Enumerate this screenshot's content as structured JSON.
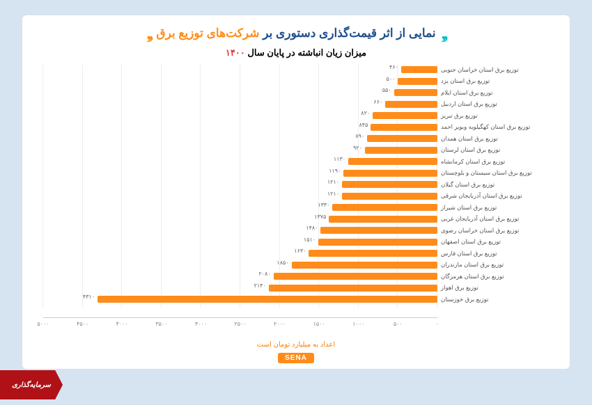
{
  "header": {
    "pre": "نمایی از اثر قیمت‌گذاری دستوری بر ",
    "highlight": "شرکت‌های توزیع برق"
  },
  "subtitle_text": "میزان زیان انباشته در پایان سال ",
  "subtitle_year": "۱۴۰۰",
  "footnote": "اعداد به میلیارد تومان است",
  "logo": "SENA",
  "badge": "سرمایه‌گذاری",
  "chart": {
    "type": "bar-horizontal",
    "bar_color": "#ff8c1a",
    "grid_color": "#eeeeee",
    "label_color": "#555555",
    "value_color": "#666666",
    "xmax": 5000,
    "xticks": [
      "۰",
      "۵۰۰",
      "۱۰۰۰",
      "۱۵۰۰",
      "۲۰۰۰",
      "۲۵۰۰",
      "۳۰۰۰",
      "۳۵۰۰",
      "۴۰۰۰",
      "۴۵۰۰",
      "۵۰۰۰"
    ],
    "xtick_vals": [
      0,
      500,
      1000,
      1500,
      2000,
      2500,
      3000,
      3500,
      4000,
      4500,
      5000
    ],
    "items": [
      {
        "label": "توزیع برق استان خراسان جنوبی",
        "val": 460,
        "disp": "۴۶۰"
      },
      {
        "label": "توزیع برق استان یزد",
        "val": 500,
        "disp": "۵۰۰"
      },
      {
        "label": "توزیع برق استان ایلام",
        "val": 550,
        "disp": "۵۵۰"
      },
      {
        "label": "توزیع برق استان اردبیل",
        "val": 660,
        "disp": "۶۶۰"
      },
      {
        "label": "توزیع برق تبریز",
        "val": 820,
        "disp": "۸۲۰"
      },
      {
        "label": "توزیع برق استان کهگیلویه وبویر احمد",
        "val": 845,
        "disp": "۸۴۵"
      },
      {
        "label": "توزیع برق استان همدان",
        "val": 890,
        "disp": "۸۹۰"
      },
      {
        "label": "توزیع برق استان لرستان",
        "val": 920,
        "disp": "۹۲۰"
      },
      {
        "label": "توزیع برق استان کرمانشاه",
        "val": 1130,
        "disp": "۱۱۳۰"
      },
      {
        "label": "توزیع برق استان سیستان و بلوچستان",
        "val": 1190,
        "disp": "۱۱۹۰"
      },
      {
        "label": "توزیع برق استان گیلان",
        "val": 1210,
        "disp": "۱۲۱۰"
      },
      {
        "label": "توزیع برق استان آذربایجان شرقی",
        "val": 1210,
        "disp": "۱۲۱۰"
      },
      {
        "label": "توزیع برق استان شیراز",
        "val": 1330,
        "disp": "۱۳۳۰"
      },
      {
        "label": "توزیع برق استان آذربایجان غربی",
        "val": 1375,
        "disp": "۱۳۷۵"
      },
      {
        "label": "توزیع برق استان خراسان رضوی",
        "val": 1480,
        "disp": "۱۴۸۰"
      },
      {
        "label": "توزیع برق استان اصفهان",
        "val": 1510,
        "disp": "۱۵۱۰"
      },
      {
        "label": "توزیع برق استان فارس",
        "val": 1630,
        "disp": "۱۶۳۰"
      },
      {
        "label": "توزیع برق استان مازندران",
        "val": 1850,
        "disp": "۱۸۵۰"
      },
      {
        "label": "توزیع برق استان هرمزگان",
        "val": 2080,
        "disp": "۲۰۸۰"
      },
      {
        "label": "توزیع برق اهواز",
        "val": 2140,
        "disp": "۲۱۴۰"
      },
      {
        "label": "توزیع برق خوزستان",
        "val": 4310,
        "disp": "۴۳۱۰"
      }
    ]
  }
}
